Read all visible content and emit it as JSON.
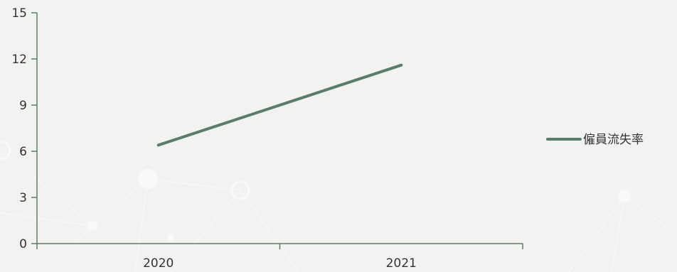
{
  "chart_data": {
    "type": "line",
    "title": "",
    "xlabel": "",
    "ylabel": "",
    "categories": [
      "2020",
      "2021"
    ],
    "series": [
      {
        "name": "僱員流失率",
        "values": [
          6.4,
          11.6
        ],
        "color": "#5a7d6b"
      }
    ],
    "ylim": [
      0,
      15
    ],
    "yticks": [
      0,
      3,
      6,
      9,
      12,
      15
    ],
    "grid": false,
    "legend_position": "right",
    "axis_color": "#5a7d6b"
  }
}
